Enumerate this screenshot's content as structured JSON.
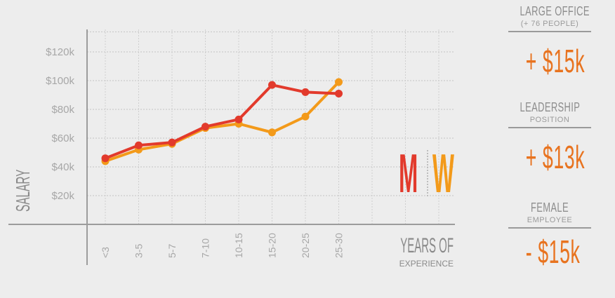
{
  "chart_data": {
    "type": "line",
    "categories": [
      "<3",
      "3-5",
      "5-7",
      "7-10",
      "10-15",
      "15-20",
      "20-25",
      "25-30"
    ],
    "series": [
      {
        "name": "M",
        "color": "#e23a2c",
        "values": [
          46,
          55,
          57,
          68,
          73,
          97,
          92,
          91
        ]
      },
      {
        "name": "W",
        "color": "#f39a1a",
        "values": [
          44,
          52,
          56,
          67,
          70,
          64,
          75,
          99
        ]
      }
    ],
    "y_ticks": [
      "$20k",
      "$40k",
      "$60k",
      "$80k",
      "$100k",
      "$120k"
    ],
    "y_tick_values": [
      20,
      40,
      60,
      80,
      100,
      120
    ],
    "ylim": [
      0,
      132
    ],
    "ylabel": "SALARY",
    "xlabel_line1": "YEARS OF",
    "xlabel_line2": "EXPERIENCE",
    "grid": true,
    "legend": {
      "men": "M",
      "women": "W"
    }
  },
  "panels": [
    {
      "title": "LARGE OFFICE",
      "subtitle": "(+ 76 PEOPLE)",
      "value": "+ $15k"
    },
    {
      "title": "LEADERSHIP",
      "subtitle": "POSITION",
      "value": "+ $13k"
    },
    {
      "title": "FEMALE",
      "subtitle": "EMPLOYEE",
      "value": "- $15k"
    }
  ]
}
